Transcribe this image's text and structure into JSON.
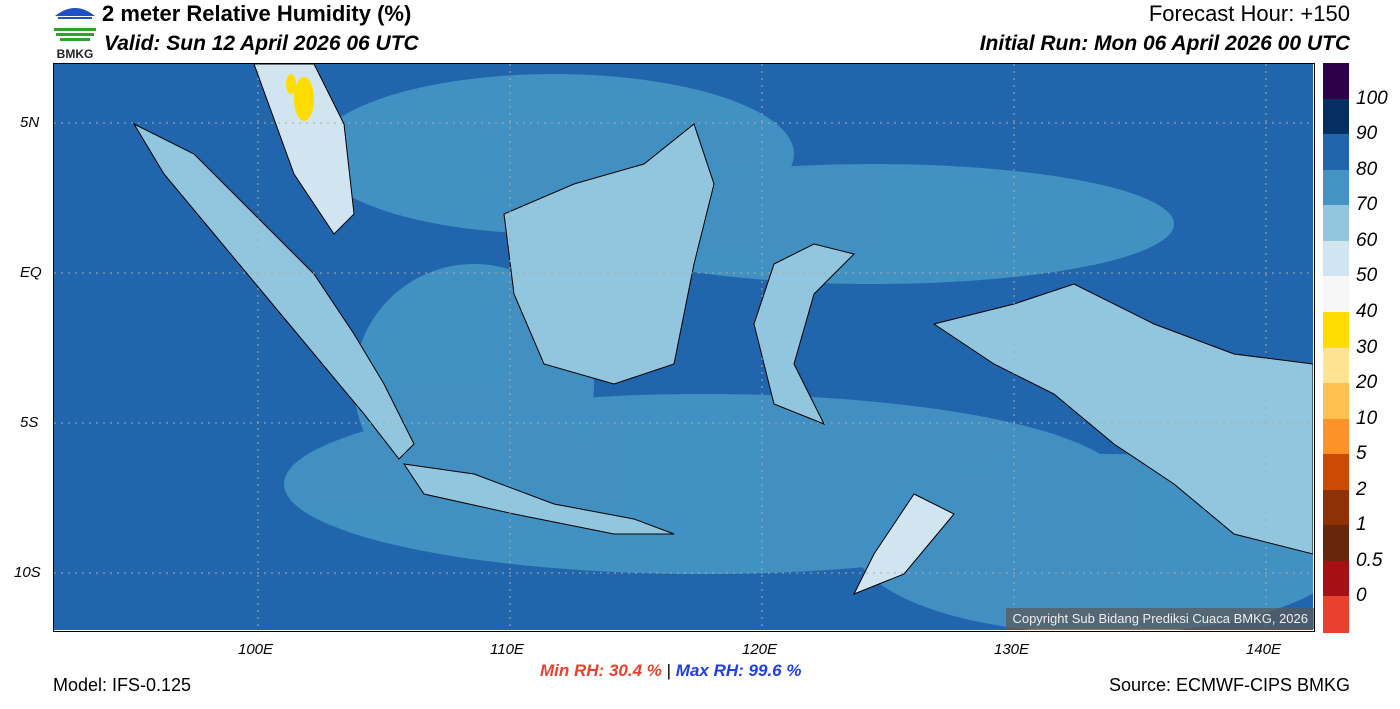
{
  "header": {
    "title": "2 meter Relative Humidity (%)",
    "valid": "Valid: Sun 12 April 2026 06 UTC",
    "forecast_hour": "Forecast Hour: +150",
    "initial_run": "Initial Run: Mon 06 April 2026 00 UTC"
  },
  "logo": {
    "text": "BMKG"
  },
  "map": {
    "lat_labels": [
      "5N",
      "EQ",
      "5S",
      "10S"
    ],
    "lon_labels": [
      "100E",
      "110E",
      "120E",
      "130E",
      "140E"
    ],
    "copyright": "Copyright Sub Bidang Prediksi Cuaca BMKG, 2026",
    "ocean_color": "#2166ac",
    "land_color": "#92c5de"
  },
  "colorbar": {
    "colors": [
      "#e8412e",
      "#a50f15",
      "#67270d",
      "#8d3207",
      "#cb4b04",
      "#fc9328",
      "#fec051",
      "#fee391",
      "#ffdd00",
      "#f7f7f7",
      "#d1e5f0",
      "#92c5de",
      "#4393c3",
      "#2166ac",
      "#053061",
      "#2d004b"
    ],
    "labels": [
      "0",
      "0.5",
      "1",
      "2",
      "5",
      "10",
      "20",
      "30",
      "40",
      "50",
      "60",
      "70",
      "80",
      "90",
      "100"
    ]
  },
  "footer": {
    "model": "Model: IFS-0.125",
    "min_rh_label": "Min RH:",
    "min_rh": "30.4 %",
    "separator": "|",
    "max_rh_label": "Max RH:",
    "max_rh": "99.6 %",
    "source": "Source: ECMWF-CIPS BMKG"
  }
}
